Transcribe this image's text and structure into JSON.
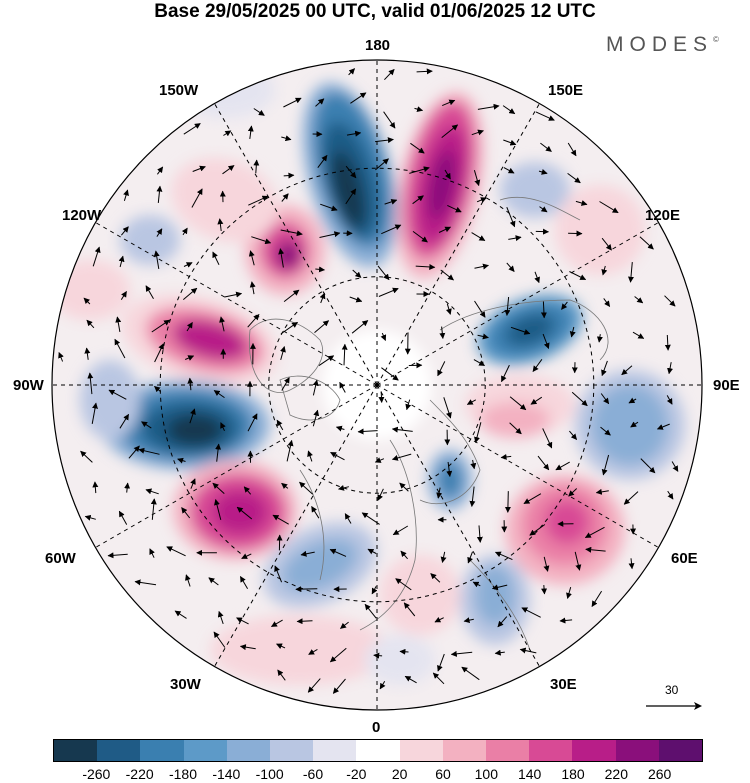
{
  "title": "Base 29/05/2025 00 UTC, valid 01/06/2025 12 UTC",
  "brand": {
    "text": "MODES",
    "mark": "©"
  },
  "longitude_labels": {
    "top": "180",
    "bottom": "0",
    "left": "90W",
    "right": "90E",
    "upper_left_1": "150W",
    "upper_left_2": "120W",
    "upper_right_1": "150E",
    "upper_right_2": "120E",
    "lower_left_1": "60W",
    "lower_left_2": "30W",
    "lower_right_1": "60E",
    "lower_right_2": "30E"
  },
  "reference_vector": {
    "value": "30"
  },
  "colorbar": {
    "labels": [
      "-260",
      "-220",
      "-180",
      "-140",
      "-100",
      "-60",
      "-20",
      "20",
      "60",
      "100",
      "140",
      "180",
      "220",
      "260"
    ],
    "colors": [
      "#16384f",
      "#1f5b86",
      "#3a7fb0",
      "#5d9ac8",
      "#8aaed6",
      "#b9c6e2",
      "#e4e4f0",
      "#ffffff",
      "#f7d6dc",
      "#f3b1c1",
      "#ea7fa6",
      "#d84a95",
      "#b81e88",
      "#8a0f7b",
      "#5e0f6e"
    ]
  },
  "anomaly_features": [
    {
      "sign": "negative",
      "level": "strong",
      "region": "north Pacific near 180"
    },
    {
      "sign": "positive",
      "level": "strong",
      "region": "east of dateline toward 150E"
    },
    {
      "sign": "positive",
      "level": "moderate",
      "region": "150W-120W"
    },
    {
      "sign": "negative",
      "level": "moderate",
      "region": "east Siberia 120E"
    },
    {
      "sign": "positive",
      "level": "moderate",
      "region": "central Canada 100W"
    },
    {
      "sign": "negative",
      "level": "strong",
      "region": "Hudson Bay 90W-70W"
    },
    {
      "sign": "positive",
      "level": "strong",
      "region": "Labrador 60W"
    },
    {
      "sign": "negative",
      "level": "moderate",
      "region": "central Asia 90E"
    },
    {
      "sign": "positive",
      "level": "strong",
      "region": "west Siberia 60E"
    },
    {
      "sign": "negative",
      "level": "moderate",
      "region": "Scandinavia 20E"
    },
    {
      "sign": "negative",
      "level": "weak",
      "region": "north Atlantic 30W"
    }
  ]
}
